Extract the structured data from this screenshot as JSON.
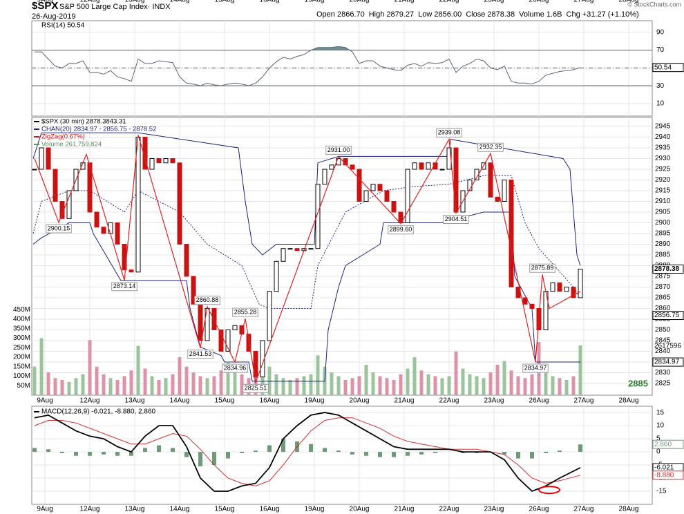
{
  "header": {
    "symbol": "$SPX",
    "name": "S&P 500 Large Cap Index· INDX",
    "date": "26-Aug-2019",
    "quote": [
      "Open 2866.70",
      "High 2879.27",
      "Low 2856.00",
      "Close 2878.38",
      "Volume 1.6B",
      "Chg +31.27 (+1.10%)"
    ],
    "credit": "© StockCharts.com"
  },
  "x_axis": {
    "xlim": [
      -0.4,
      89.4
    ],
    "xticks": [
      {
        "value": 1.5,
        "label": "9Aug"
      },
      {
        "value": 8,
        "label": "12Aug"
      },
      {
        "value": 14.5,
        "label": "13Aug"
      },
      {
        "value": 21,
        "label": "14Aug"
      },
      {
        "value": 27.5,
        "label": "15Aug"
      },
      {
        "value": 34,
        "label": "16Aug"
      },
      {
        "value": 40.5,
        "label": "19Aug"
      },
      {
        "value": 47,
        "label": "20Aug"
      },
      {
        "value": 53.5,
        "label": "21Aug"
      },
      {
        "value": 60,
        "label": "22Aug"
      },
      {
        "value": 66.5,
        "label": "23Aug"
      },
      {
        "value": 73,
        "label": "26Aug"
      },
      {
        "value": 79.5,
        "label": "27Aug"
      },
      {
        "value": 86,
        "label": "28Aug"
      }
    ]
  },
  "chart_data": [
    {
      "type": "line",
      "legend": "RSI(14) 50.54",
      "color": "#5a6478",
      "fill": "#6f8f8f",
      "ylim": [
        -4,
        103
      ],
      "yticks": [
        10,
        30,
        50,
        70,
        90
      ],
      "overbought": 70,
      "oversold": 30,
      "midline": 50,
      "marker": 50.54,
      "values": [
        68,
        68,
        60,
        52,
        50,
        55,
        55,
        58,
        45,
        45,
        43,
        47,
        40,
        38,
        35,
        60,
        55,
        55,
        58,
        57,
        56,
        40,
        33,
        32,
        30,
        33,
        31,
        30,
        32,
        33,
        32,
        30,
        33,
        40,
        50,
        57,
        62,
        60,
        63,
        65,
        70,
        73,
        73,
        73,
        74,
        73,
        68,
        55,
        58,
        58,
        52,
        50,
        48,
        47,
        53,
        55,
        52,
        56,
        55,
        56,
        60,
        45,
        52,
        55,
        60,
        58,
        50,
        48,
        52,
        35,
        33,
        33,
        32,
        35,
        42,
        44,
        46,
        47,
        48,
        50.54
      ]
    },
    {
      "type": "candlestick",
      "legend": [
        "$SPX (30 min) 2878.3843.31",
        "CHAN(20) 2834.97 - 2856.75 - 2878.52",
        "ZigZag(0.67%)",
        "Volume 261,759,824"
      ],
      "legend_colors": [
        "#000000",
        "#1a237e",
        "#d01010",
        "#5a8f5a"
      ],
      "colors": {
        "up": "#000000",
        "down": "#cc1111",
        "volume_up": "#9cc49c",
        "volume_down": "#dc93a8",
        "channel": "#1a237e",
        "zigzag": "#e02020"
      },
      "ylim": [
        2819.5,
        2949.2
      ],
      "yticks": [
        2825,
        2830,
        2835,
        2840,
        2845,
        2850,
        2855,
        2860,
        2865,
        2870,
        2875,
        2880,
        2885,
        2890,
        2895,
        2900,
        2905,
        2910,
        2915,
        2920,
        2925,
        2930,
        2935,
        2940,
        2945
      ],
      "grid": true,
      "markers": [
        2878.38,
        2856.75,
        2834.97
      ],
      "annotations": [
        "2617596",
        "2885"
      ],
      "values": [
        2925,
        2935,
        2925,
        2910,
        2902,
        2915,
        2925,
        2928,
        2905,
        2898,
        2895,
        2900,
        2890,
        2878,
        2877,
        2940,
        2925,
        2930,
        2928,
        2930,
        2928,
        2890,
        2875,
        2862,
        2845,
        2860,
        2850,
        2840,
        2850,
        2852,
        2848,
        2840,
        2828,
        2845,
        2868,
        2882,
        2888,
        2888,
        2887,
        2888,
        2888,
        2918,
        2925,
        2927,
        2930,
        2927,
        2925,
        2910,
        2915,
        2918,
        2915,
        2910,
        2905,
        2900,
        2925,
        2928,
        2925,
        2928,
        2925,
        2925,
        2935,
        2905,
        2915,
        2920,
        2925,
        2928,
        2912,
        2910,
        2920,
        2870,
        2865,
        2862,
        2860,
        2850,
        2868,
        2872,
        2868,
        2870,
        2865,
        2878.38
      ],
      "volume": {
        "ylim": [
          0,
          500
        ],
        "yticks": [
          {
            "value": 50,
            "label": "50M"
          },
          {
            "value": 100,
            "label": "100M"
          },
          {
            "value": 150,
            "label": "150M"
          },
          {
            "value": 200,
            "label": "200M"
          },
          {
            "value": 250,
            "label": "250M"
          },
          {
            "value": 300,
            "label": "300M"
          },
          {
            "value": 350,
            "label": "350M"
          },
          {
            "value": 400,
            "label": "400M"
          },
          {
            "value": 450,
            "label": "450M"
          }
        ],
        "values": [
          150,
          300,
          120,
          90,
          80,
          70,
          90,
          110,
          290,
          150,
          110,
          90,
          80,
          100,
          130,
          260,
          140,
          100,
          80,
          90,
          110,
          200,
          150,
          120,
          100,
          90,
          100,
          130,
          170,
          140,
          110,
          90,
          120,
          250,
          150,
          110,
          90,
          80,
          90,
          100,
          110,
          210,
          150,
          120,
          100,
          80,
          90,
          100,
          160,
          120,
          100,
          90,
          80,
          110,
          140,
          200,
          130,
          110,
          100,
          90,
          100,
          230,
          140,
          110,
          100,
          90,
          120,
          160,
          180,
          130,
          100,
          90,
          110,
          280,
          130,
          100,
          90,
          80,
          100,
          261.759824
        ]
      },
      "channel": {
        "upper": {
          "x": [
            -0.2,
            1,
            15,
            29.5,
            30.5,
            31.5,
            33,
            35,
            40.5,
            41,
            44,
            60,
            60.2,
            76.5,
            77.5,
            78.5,
            79
          ],
          "values": [
            2930,
            2942,
            2942,
            2935,
            2910,
            2890,
            2885,
            2890,
            2890,
            2928,
            2931,
            2931,
            2939,
            2930,
            2925,
            2885,
            2880
          ]
        },
        "middle": {
          "x": [
            -0.2,
            1,
            5,
            8,
            13,
            15,
            21,
            25,
            30,
            32.5,
            34,
            40,
            41,
            45,
            50.5,
            55,
            60,
            65,
            69,
            71,
            73,
            78,
            79
          ],
          "values": [
            2895,
            2910,
            2915,
            2915,
            2905,
            2915,
            2905,
            2890,
            2880,
            2862,
            2860,
            2860,
            2880,
            2905,
            2915,
            2917,
            2918,
            2922,
            2922,
            2900,
            2888,
            2870,
            2865
          ]
        },
        "lower": {
          "x": [
            -0.2,
            1,
            5,
            8,
            8.5,
            12.5,
            22,
            22.5,
            24,
            27,
            27.5,
            31,
            31.5,
            42,
            42.5,
            44,
            45,
            50,
            50.5,
            59,
            65,
            69,
            69.5,
            72,
            72.5,
            79
          ],
          "values": [
            2890,
            2893,
            2900,
            2900,
            2895,
            2873,
            2873,
            2860,
            2842,
            2838,
            2835,
            2835,
            2826,
            2826,
            2850,
            2870,
            2880,
            2890,
            2900,
            2900,
            2905,
            2905,
            2875,
            2860,
            2835,
            2835
          ]
        }
      },
      "zigzag": {
        "x": [
          0,
          3.5,
          7.5,
          13,
          15,
          24,
          25,
          29,
          30.5,
          32,
          44,
          53,
          60,
          61,
          66,
          72.5,
          73.5,
          74.5,
          79
        ],
        "values": [
          2930,
          2900.15,
          2932,
          2873.14,
          2941,
          2841.53,
          2860.88,
          2834.96,
          2855.28,
          2825.51,
          2931,
          2899.6,
          2939.08,
          2904.51,
          2932.35,
          2834.97,
          2875.89,
          2860,
          2868
        ],
        "value_labels": [
          null,
          "2900.15",
          null,
          "2873.14",
          null,
          "2841.53",
          "2860.88",
          "2834.96",
          "2855.28",
          "2825.51",
          "2931.00",
          "2899.60",
          "2939.08",
          "2904.51",
          "2932.35",
          "2834.97",
          "2875.89",
          null,
          null
        ]
      }
    },
    {
      "type": "macd",
      "legend": "MACD(12,26,9) -6.021, -8.880, 2.860",
      "colors": {
        "macd": "#000000",
        "signal": "#d03030",
        "histogram": "#6f9a78"
      },
      "ylim": [
        -20,
        17.4
      ],
      "yticks": [
        15,
        10,
        5,
        0,
        -5,
        -10,
        -15
      ],
      "markers": [
        {
          "value": 2.86,
          "label": "2.860"
        },
        -6.021,
        {
          "value": -8.88,
          "label": "-8.880"
        }
      ],
      "x": [
        0,
        2,
        4,
        6,
        8,
        10,
        12,
        14,
        16,
        18,
        20,
        22,
        24,
        26,
        28,
        30,
        32,
        34,
        36,
        38,
        40,
        42,
        44,
        46,
        48,
        50,
        52,
        54,
        56,
        58,
        60,
        62,
        64,
        66,
        68,
        70,
        72,
        74,
        76,
        79
      ],
      "macd": [
        13,
        14,
        11,
        8,
        6,
        5,
        2,
        0,
        6,
        10,
        10,
        2,
        -10,
        -15,
        -15,
        -13,
        -12,
        -6,
        5,
        10,
        14,
        15,
        14,
        11,
        8,
        5,
        2,
        1,
        1,
        1,
        1,
        0,
        0,
        0,
        -3,
        -10,
        -15,
        -13,
        -10,
        -6.021
      ],
      "signal": [
        10,
        12,
        12,
        11,
        9,
        7,
        5,
        3,
        3,
        5,
        7,
        6,
        1,
        -5,
        -10,
        -12,
        -13,
        -11,
        -5,
        2,
        8,
        12,
        13,
        13,
        11,
        9,
        6,
        4,
        3,
        2,
        1,
        1,
        1,
        0,
        -1,
        -5,
        -10,
        -12,
        -11,
        -8.88
      ],
      "histogram": [
        1.5,
        1,
        -0.5,
        -1.5,
        -1.5,
        -1,
        -1.5,
        -1.5,
        1.5,
        2.5,
        1.5,
        -2,
        -5.5,
        -5,
        -2.5,
        -0.5,
        0.5,
        2.5,
        5,
        4,
        3,
        1.5,
        0.5,
        -1,
        -1.5,
        -2,
        -2,
        -1.5,
        -1,
        -0.5,
        0,
        -0.5,
        -0.5,
        0,
        -1,
        -2.5,
        -2.5,
        -0.5,
        0.5,
        2.86
      ]
    }
  ]
}
